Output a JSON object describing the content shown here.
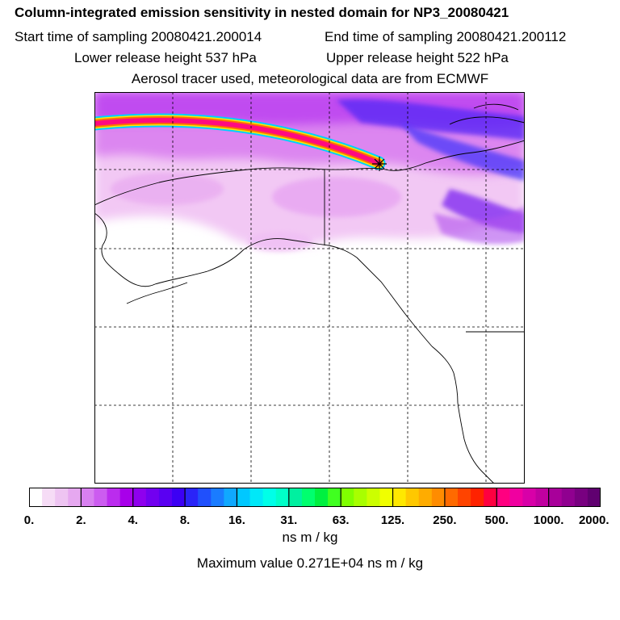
{
  "header": {
    "title": "Column-integrated emission sensitivity in nested domain for NP3_20080421",
    "start_time": "Start time of sampling 20080421.200014",
    "end_time": "End time of sampling 20080421.200112",
    "lower_release": "Lower release height  537 hPa",
    "upper_release": "Upper release height  522 hPa",
    "tracer_info": "Aerosol tracer used, meteorological data are from ECMWF"
  },
  "colorbar": {
    "tick_labels": [
      "0.",
      "2.",
      "4.",
      "8.",
      "16.",
      "31.",
      "63.",
      "125.",
      "250.",
      "500.",
      "1000.",
      "2000."
    ],
    "units": "ns m / kg",
    "colors": [
      "#ffffff",
      "#f6dcf6",
      "#eec4f2",
      "#e6a8f0",
      "#d880f0",
      "#cc5cf0",
      "#bb2cee",
      "#a800ea",
      "#8f00ee",
      "#7200f0",
      "#5a00f2",
      "#3c00f4",
      "#2a24f8",
      "#2050fc",
      "#1a7cff",
      "#10a8ff",
      "#00c8ff",
      "#00e8f8",
      "#00ffe8",
      "#00ffc8",
      "#00f0a0",
      "#00ff6e",
      "#00f040",
      "#40ff20",
      "#80ff00",
      "#a8ff00",
      "#ccff00",
      "#f0ff00",
      "#ffe800",
      "#ffc800",
      "#ffac00",
      "#ff8c00",
      "#ff6a00",
      "#ff4400",
      "#ff2200",
      "#ff0040",
      "#ff0080",
      "#f000a0",
      "#d800a8",
      "#c000a0",
      "#a8009a",
      "#900090",
      "#780080",
      "#600070"
    ]
  },
  "max_value": "Maximum value  0.271E+04 ns m / kg",
  "map": {
    "release_marker": "star-icon"
  }
}
